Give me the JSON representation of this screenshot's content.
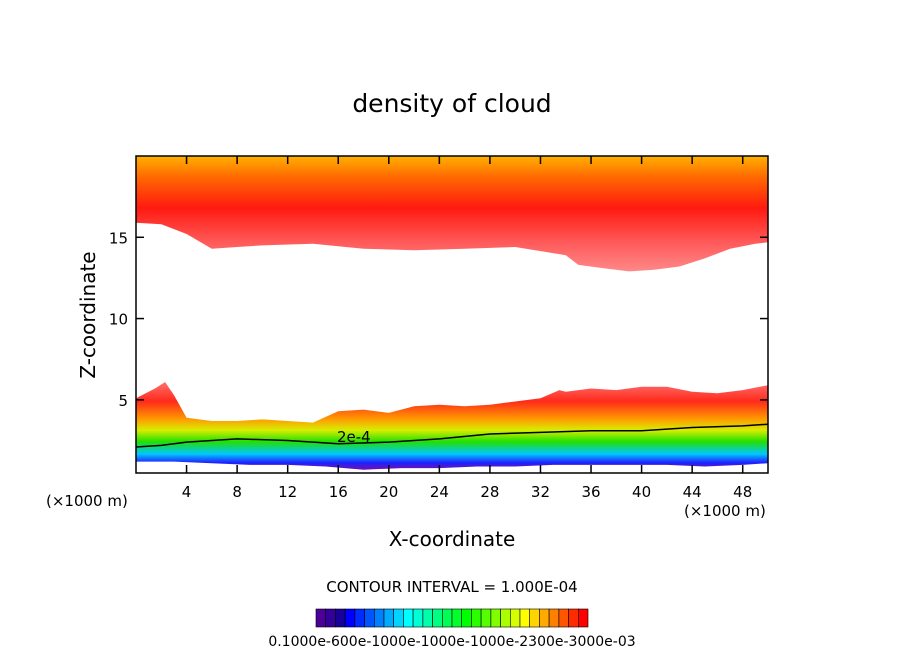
{
  "chart_data": {
    "type": "contour",
    "title": "density of cloud",
    "xlabel": "X-coordinate",
    "ylabel": "Z-coordinate",
    "xunit": "(×1000 m)",
    "zunit": "(×1000 m)",
    "xlim": [
      0,
      50
    ],
    "ylim": [
      0.5,
      20
    ],
    "xticks": [
      4,
      8,
      12,
      16,
      20,
      24,
      28,
      32,
      36,
      40,
      44,
      48
    ],
    "yticks": [
      5,
      10,
      15
    ],
    "contour_interval_text": "CONTOUR INTERVAL = 1.000E-04",
    "contour_label": "2e-4",
    "colorbar_labels": "0.1000e-600e-1000e-1000e-1000e-2300e-3000e-03",
    "colorbar_segments": 28,
    "layers": [
      {
        "name": "upper cloud",
        "top": 20,
        "base_x": [
          0,
          2,
          4,
          6,
          8,
          10,
          14,
          18,
          22,
          26,
          30,
          34,
          35,
          37,
          39,
          41,
          43,
          45,
          47,
          49,
          50
        ],
        "base_z": [
          15.9,
          15.8,
          15.2,
          14.3,
          14.4,
          14.5,
          14.6,
          14.3,
          14.2,
          14.3,
          14.4,
          13.9,
          13.3,
          13.1,
          12.9,
          13.0,
          13.2,
          13.7,
          14.3,
          14.6,
          14.7
        ]
      },
      {
        "name": "lower cloud",
        "bottom_x": [
          0,
          3,
          6,
          9,
          12,
          15,
          18,
          21,
          24,
          27,
          30,
          33,
          36,
          39,
          42,
          45,
          48,
          50
        ],
        "bottom_z": [
          1.2,
          1.2,
          1.1,
          1.0,
          1.0,
          0.9,
          0.7,
          0.8,
          0.8,
          0.9,
          0.9,
          1.0,
          1.0,
          1.0,
          1.0,
          0.9,
          1.0,
          1.1
        ],
        "top_x": [
          0,
          1.5,
          2.3,
          3,
          4,
          6,
          8,
          10,
          12,
          14,
          16,
          18,
          20,
          22,
          24,
          26,
          28,
          30,
          32,
          33.5,
          34,
          36,
          38,
          40,
          42,
          44,
          46,
          48,
          50
        ],
        "top_z": [
          5.1,
          5.7,
          6.1,
          5.3,
          3.9,
          3.7,
          3.7,
          3.8,
          3.7,
          3.6,
          4.3,
          4.4,
          4.2,
          4.6,
          4.7,
          4.6,
          4.7,
          4.9,
          5.1,
          5.6,
          5.5,
          5.7,
          5.6,
          5.8,
          5.8,
          5.5,
          5.4,
          5.6,
          5.9
        ],
        "contour_2e4_x": [
          0,
          2,
          4,
          8,
          12,
          16,
          20,
          24,
          28,
          32,
          36,
          40,
          44,
          48,
          50
        ],
        "contour_2e4_z": [
          2.1,
          2.2,
          2.4,
          2.6,
          2.5,
          2.3,
          2.4,
          2.6,
          2.9,
          3.0,
          3.1,
          3.1,
          3.3,
          3.4,
          3.5
        ]
      }
    ]
  }
}
